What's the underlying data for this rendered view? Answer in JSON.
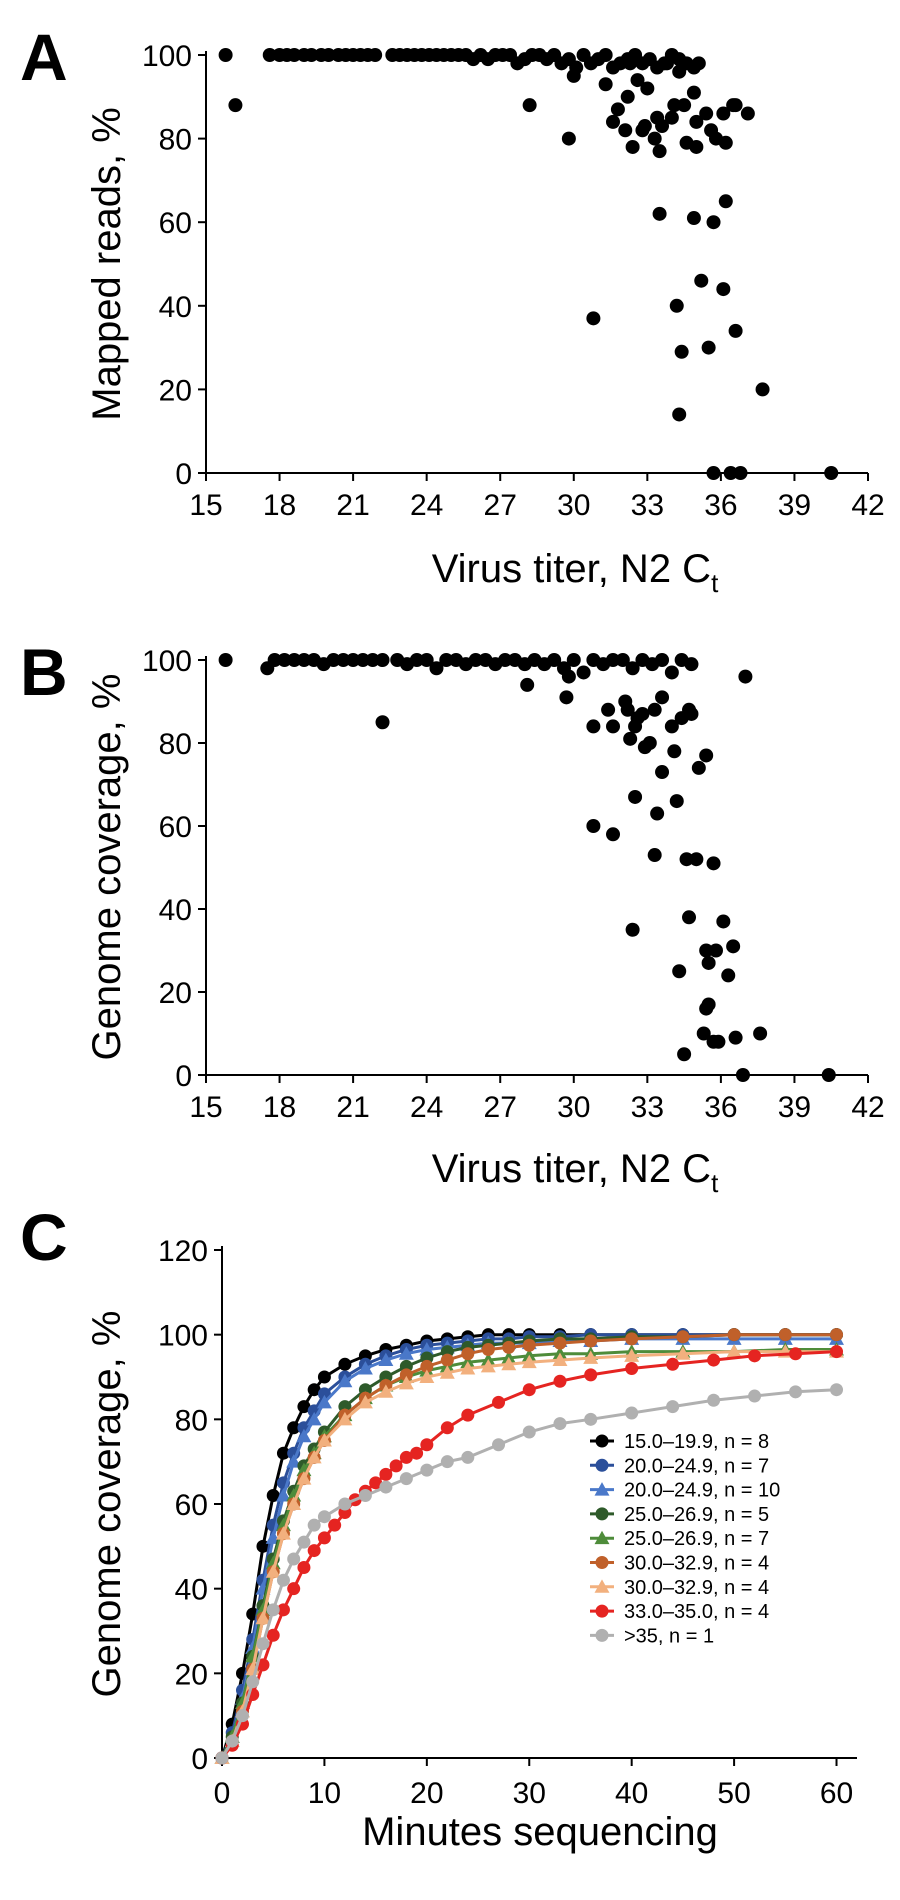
{
  "chart_data": [
    {
      "panel": "A",
      "type": "scatter",
      "title": "",
      "xlabel": "Virus titer, N2 C",
      "xlabel_sub": "t",
      "ylabel": "Mapped reads, %",
      "xlim": [
        15,
        42
      ],
      "ylim": [
        0,
        100
      ],
      "xticks": [
        15,
        18,
        21,
        24,
        27,
        30,
        33,
        36,
        39,
        42
      ],
      "yticks": [
        0,
        20,
        40,
        60,
        80,
        100
      ],
      "grid": false,
      "x": [
        15.8,
        16.2,
        17.6,
        18.0,
        18.3,
        18.6,
        19.0,
        19.3,
        19.7,
        20.0,
        20.4,
        20.7,
        21.0,
        21.3,
        21.6,
        21.9,
        22.6,
        22.9,
        23.2,
        23.5,
        23.8,
        24.1,
        24.4,
        24.7,
        25.0,
        25.3,
        25.6,
        25.9,
        26.2,
        26.5,
        26.8,
        27.1,
        27.4,
        27.7,
        28.0,
        28.3,
        28.6,
        28.9,
        29.2,
        29.5,
        29.8,
        30.1,
        30.4,
        30.7,
        31.0,
        31.3,
        31.6,
        31.9,
        32.2,
        32.5,
        32.8,
        33.1,
        33.4,
        33.7,
        34.0,
        34.3,
        34.6,
        34.9,
        35.1,
        28.2,
        29.8,
        30.0,
        30.8,
        31.3,
        31.8,
        32.2,
        32.6,
        33.0,
        33.4,
        33.8,
        34.3,
        34.9,
        31.6,
        32.1,
        32.4,
        32.8,
        33.3,
        33.6,
        34.1,
        34.6,
        35.0,
        35.4,
        35.8,
        36.2,
        36.6,
        37.1,
        32.3,
        32.9,
        33.5,
        34.0,
        34.5,
        35.0,
        35.6,
        36.1,
        36.5,
        35.7,
        33.5,
        34.9,
        36.2,
        35.2,
        36.1,
        34.2,
        37.7,
        36.6,
        35.5,
        34.4,
        34.3,
        35.7,
        36.4,
        36.8,
        40.5
      ],
      "y": [
        100,
        88,
        100,
        100,
        100,
        100,
        100,
        100,
        100,
        100,
        100,
        100,
        100,
        100,
        100,
        100,
        100,
        100,
        100,
        100,
        100,
        100,
        100,
        100,
        100,
        100,
        100,
        99,
        100,
        99,
        100,
        100,
        100,
        98,
        99,
        100,
        100,
        99,
        100,
        98,
        99,
        97,
        100,
        98,
        99,
        100,
        97,
        98,
        99,
        100,
        98,
        99,
        97,
        98,
        100,
        99,
        98,
        97,
        98,
        88,
        80,
        95,
        37,
        93,
        87,
        90,
        94,
        92,
        85,
        98,
        96,
        91,
        84,
        82,
        78,
        82,
        80,
        83,
        88,
        79,
        84,
        86,
        80,
        79,
        88,
        86,
        98,
        83,
        77,
        85,
        88,
        78,
        82,
        86,
        88,
        60,
        62,
        61,
        65,
        46,
        44,
        40,
        20,
        34,
        30,
        29,
        14,
        0,
        0,
        0,
        0
      ]
    },
    {
      "panel": "B",
      "type": "scatter",
      "title": "",
      "xlabel": "Virus titer, N2 C",
      "xlabel_sub": "t",
      "ylabel": "Genome coverage, %",
      "xlim": [
        15,
        42
      ],
      "ylim": [
        0,
        100
      ],
      "xticks": [
        15,
        18,
        21,
        24,
        27,
        30,
        33,
        36,
        39,
        42
      ],
      "yticks": [
        0,
        20,
        40,
        60,
        80,
        100
      ],
      "grid": false,
      "x": [
        15.8,
        17.5,
        17.8,
        18.2,
        18.6,
        19.0,
        19.4,
        19.8,
        20.2,
        20.6,
        21.0,
        21.4,
        21.8,
        22.2,
        22.8,
        23.2,
        23.6,
        24.0,
        24.4,
        24.8,
        25.2,
        25.6,
        26.0,
        26.4,
        26.8,
        27.2,
        27.6,
        28.0,
        28.4,
        28.8,
        29.2,
        29.6,
        30.0,
        30.4,
        30.8,
        31.2,
        31.6,
        32.0,
        32.4,
        32.8,
        33.2,
        33.6,
        34.0,
        34.4,
        34.8,
        22.2,
        28.1,
        29.7,
        29.8,
        30.8,
        31.4,
        31.6,
        32.1,
        32.3,
        32.6,
        32.9,
        33.3,
        33.6,
        34.0,
        34.4,
        34.8,
        32.2,
        32.5,
        32.8,
        33.1,
        33.6,
        34.1,
        34.7,
        35.1,
        35.4,
        37.0,
        30.8,
        31.6,
        32.5,
        33.3,
        34.2,
        35.0,
        35.7,
        33.4,
        34.6,
        32.4,
        34.7,
        35.4,
        36.1,
        36.5,
        35.5,
        35.8,
        36.3,
        35.3,
        35.4,
        35.7,
        34.3,
        34.5,
        35.5,
        35.9,
        36.6,
        36.9,
        37.6,
        40.4
      ],
      "y": [
        100,
        98,
        100,
        100,
        100,
        100,
        100,
        99,
        100,
        100,
        100,
        100,
        100,
        100,
        100,
        99,
        100,
        100,
        98,
        100,
        100,
        99,
        100,
        100,
        99,
        100,
        100,
        99,
        100,
        99,
        100,
        98,
        100,
        97,
        100,
        99,
        100,
        100,
        98,
        100,
        99,
        100,
        97,
        100,
        99,
        85,
        94,
        91,
        96,
        84,
        88,
        84,
        90,
        81,
        86,
        79,
        88,
        91,
        84,
        86,
        87,
        88,
        84,
        87,
        80,
        73,
        78,
        88,
        74,
        77,
        96,
        60,
        58,
        67,
        53,
        66,
        52,
        51,
        63,
        52,
        35,
        38,
        30,
        37,
        31,
        27,
        30,
        24,
        10,
        16,
        8,
        25,
        5,
        17,
        8,
        9,
        0,
        10,
        0
      ]
    },
    {
      "panel": "C",
      "type": "line",
      "title": "",
      "xlabel": "Minutes sequencing",
      "ylabel": "Genome coverage, %",
      "xlim": [
        0,
        62
      ],
      "ylim": [
        0,
        120
      ],
      "xticks": [
        0,
        10,
        20,
        30,
        40,
        50,
        60
      ],
      "yticks": [
        0,
        20,
        40,
        60,
        80,
        100,
        120
      ],
      "grid": false,
      "legend_position": "bottom-right",
      "series": [
        {
          "name": "15.0–19.9, n = 8",
          "color": "#000000",
          "marker": "circle",
          "x": [
            0,
            1,
            2,
            3,
            4,
            5,
            6,
            7,
            8,
            9,
            10,
            12,
            14,
            16,
            18,
            20,
            22,
            24,
            26,
            28,
            30,
            33,
            36,
            40,
            45,
            50,
            55,
            60
          ],
          "y": [
            0,
            8,
            20,
            34,
            50,
            62,
            72,
            78,
            83,
            87,
            90,
            93,
            95,
            96.5,
            97.5,
            98.5,
            99,
            99.5,
            100,
            100,
            100,
            100,
            100,
            100,
            100,
            100,
            100,
            100
          ]
        },
        {
          "name": "20.0–24.9, n = 7",
          "color": "#2b4f9a",
          "marker": "circle",
          "x": [
            0,
            1,
            2,
            3,
            4,
            5,
            6,
            7,
            8,
            9,
            10,
            12,
            14,
            16,
            18,
            20,
            22,
            24,
            26,
            28,
            30,
            33,
            36,
            40,
            45,
            50,
            55,
            60
          ],
          "y": [
            0,
            6,
            16,
            28,
            42,
            55,
            65,
            72,
            78,
            82,
            86,
            90,
            93,
            95,
            96.5,
            97.5,
            98,
            98.5,
            99,
            99,
            99.5,
            99.5,
            100,
            100,
            100,
            100,
            100,
            100
          ]
        },
        {
          "name": "20.0–24.9, n = 10",
          "color": "#4a78c9",
          "marker": "triangle",
          "x": [
            0,
            1,
            2,
            3,
            4,
            5,
            6,
            7,
            8,
            9,
            10,
            12,
            14,
            16,
            18,
            20,
            22,
            24,
            26,
            28,
            30,
            33,
            36,
            40,
            45,
            50,
            55,
            60
          ],
          "y": [
            0,
            5,
            14,
            26,
            40,
            52,
            62,
            70,
            76,
            80,
            84,
            89,
            92,
            94,
            95.5,
            96.5,
            97,
            97.5,
            98,
            98,
            98,
            98.5,
            98.5,
            99,
            99,
            99,
            99,
            99
          ]
        },
        {
          "name": "25.0–26.9, n = 5",
          "color": "#2e5a2a",
          "marker": "circle",
          "x": [
            0,
            1,
            2,
            3,
            4,
            5,
            6,
            7,
            8,
            9,
            10,
            12,
            14,
            16,
            18,
            20,
            22,
            24,
            26,
            28,
            30,
            33,
            36,
            40,
            45,
            50,
            55,
            60
          ],
          "y": [
            0,
            5,
            13,
            24,
            36,
            47,
            56,
            63,
            69,
            73,
            77,
            83,
            87,
            90,
            92.5,
            94.5,
            96,
            97,
            97.5,
            98,
            98.5,
            99,
            99,
            99.5,
            99.5,
            100,
            100,
            100
          ]
        },
        {
          "name": "25.0–26.9, n = 7",
          "color": "#4e8c3a",
          "marker": "triangle",
          "x": [
            0,
            1,
            2,
            3,
            4,
            5,
            6,
            7,
            8,
            9,
            10,
            12,
            14,
            16,
            18,
            20,
            22,
            24,
            26,
            28,
            30,
            33,
            36,
            40,
            45,
            50,
            55,
            60
          ],
          "y": [
            0,
            5,
            13,
            24,
            35,
            46,
            55,
            62,
            68,
            72,
            76,
            81,
            85,
            88,
            90,
            91.5,
            92.5,
            93.5,
            94,
            94.5,
            95,
            95.5,
            95.5,
            96,
            96,
            96,
            96.5,
            96.5
          ]
        },
        {
          "name": "30.0–32.9, n = 4",
          "color": "#c0602a",
          "marker": "circle",
          "x": [
            0,
            1,
            2,
            3,
            4,
            5,
            6,
            7,
            8,
            9,
            10,
            12,
            14,
            16,
            18,
            20,
            22,
            24,
            26,
            28,
            30,
            33,
            36,
            40,
            45,
            50,
            55,
            60
          ],
          "y": [
            0,
            4,
            11,
            21,
            33,
            44,
            53,
            60,
            66,
            71,
            75,
            81,
            85,
            88,
            90.5,
            92.5,
            94,
            95.5,
            96.5,
            97,
            97.5,
            98,
            98.5,
            99,
            99.5,
            100,
            100,
            100
          ]
        },
        {
          "name": "30.0–32.9, n = 4",
          "color": "#f2b07e",
          "marker": "triangle",
          "x": [
            0,
            1,
            2,
            3,
            4,
            5,
            6,
            7,
            8,
            9,
            10,
            12,
            14,
            16,
            18,
            20,
            22,
            24,
            26,
            28,
            30,
            33,
            36,
            40,
            45,
            50,
            55,
            60
          ],
          "y": [
            0,
            4,
            11,
            21,
            33,
            44,
            53,
            60,
            66,
            71,
            75,
            80,
            84,
            86.5,
            88.5,
            90,
            91,
            92,
            92.5,
            93,
            93.5,
            94,
            94.5,
            95,
            95.5,
            96,
            96,
            96
          ]
        },
        {
          "name": "33.0–35.0, n = 4",
          "color": "#e52421",
          "marker": "circle",
          "x": [
            0,
            1,
            2,
            3,
            4,
            5,
            6,
            7,
            8,
            9,
            10,
            11,
            12,
            13,
            14,
            15,
            16,
            17,
            18,
            19,
            20,
            22,
            24,
            27,
            30,
            33,
            36,
            40,
            44,
            48,
            52,
            56,
            60
          ],
          "y": [
            0,
            3,
            8,
            15,
            22,
            29,
            35,
            40,
            45,
            49,
            52,
            55,
            58,
            61,
            63,
            65,
            67,
            69,
            71,
            72,
            74,
            78,
            81,
            84,
            87,
            89,
            90.5,
            92,
            93,
            94,
            95,
            95.5,
            96
          ]
        },
        {
          "name": ">35, n = 1",
          "color": "#b0b0b0",
          "marker": "circle",
          "x": [
            0,
            1,
            2,
            3,
            4,
            5,
            6,
            7,
            8,
            9,
            10,
            12,
            14,
            16,
            18,
            20,
            22,
            24,
            27,
            30,
            33,
            36,
            40,
            44,
            48,
            52,
            56,
            60
          ],
          "y": [
            0,
            4,
            10,
            18,
            27,
            35,
            42,
            47,
            51,
            55,
            57,
            60,
            62,
            64,
            66,
            68,
            70,
            71,
            74,
            77,
            79,
            80,
            81.5,
            83,
            84.5,
            85.5,
            86.5,
            87
          ]
        }
      ]
    }
  ]
}
